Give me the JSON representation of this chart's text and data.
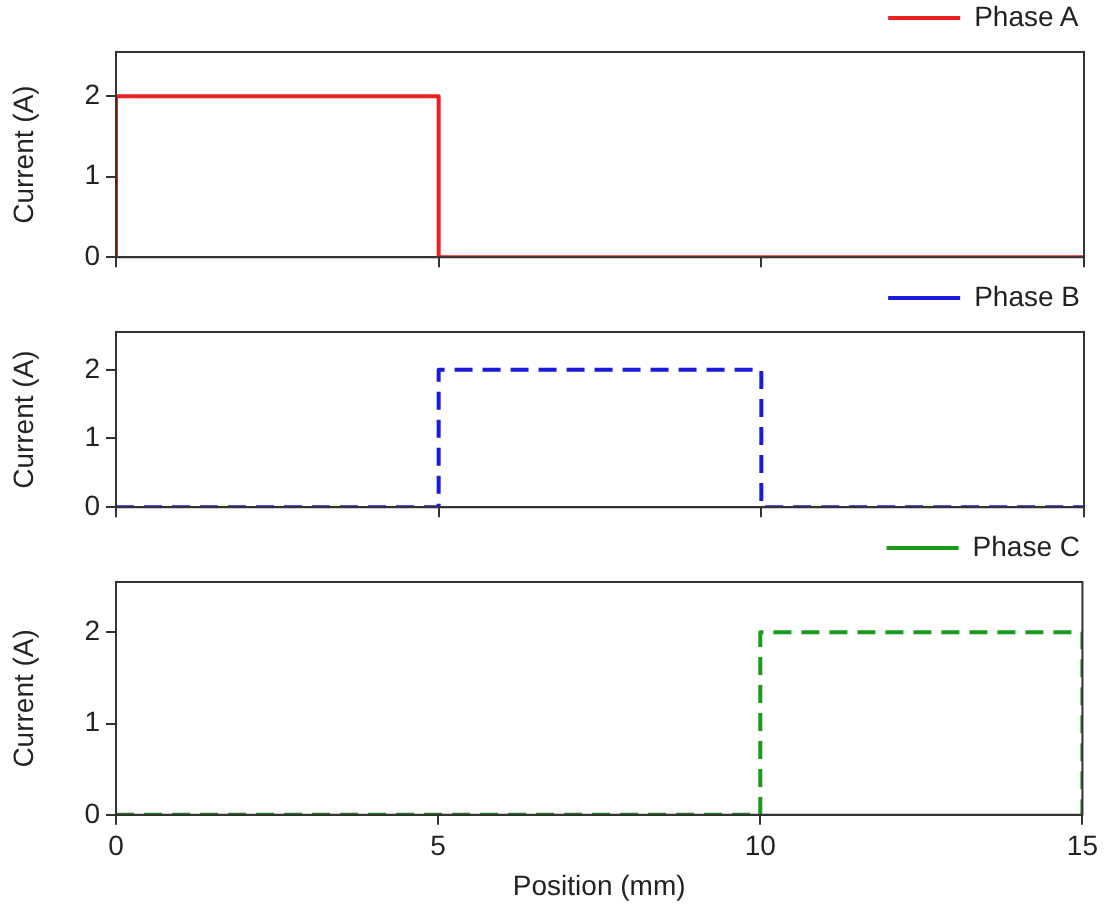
{
  "chart_data": [
    {
      "type": "line",
      "ylabel": "Current (A)",
      "xlim": [
        0,
        15
      ],
      "xticks": [
        0,
        5,
        10,
        15
      ],
      "ylim": [
        0,
        2.55
      ],
      "yticks": [
        0,
        1,
        2
      ],
      "tick_labels": "y",
      "grid": false,
      "legend": "top right",
      "marker": "none",
      "series": [
        {
          "name": "Phase A",
          "color": "#e8201e",
          "line_style": "solid",
          "x": [
            0,
            0,
            5,
            5,
            15
          ],
          "values": [
            0,
            2,
            2,
            0,
            0
          ]
        }
      ]
    },
    {
      "type": "line",
      "ylabel": "Current (A)",
      "xlim": [
        0,
        15
      ],
      "xticks": [
        0,
        5,
        10,
        15
      ],
      "ylim": [
        0,
        2.55
      ],
      "yticks": [
        0,
        1,
        2
      ],
      "tick_labels": "y",
      "grid": false,
      "legend": "top right",
      "marker": "none",
      "series": [
        {
          "name": "Phase B",
          "color": "#1a1adc",
          "line_style": "dashed",
          "x": [
            0,
            5,
            5,
            10,
            10,
            15
          ],
          "values": [
            0,
            0,
            2,
            2,
            0,
            0
          ]
        }
      ]
    },
    {
      "type": "line",
      "xlabel": "Position (mm)",
      "ylabel": "Current (A)",
      "xlim": [
        0,
        15
      ],
      "xticks": [
        0,
        5,
        10,
        15
      ],
      "ylim": [
        0,
        2.55
      ],
      "yticks": [
        0,
        1,
        2
      ],
      "grid": false,
      "legend": "top right",
      "marker": "none",
      "series": [
        {
          "name": "Phase C",
          "color": "#1a9a1a",
          "line_style": "dashed",
          "x": [
            0,
            10,
            10,
            15,
            15
          ],
          "values": [
            0,
            0,
            2,
            2,
            0
          ]
        }
      ]
    }
  ]
}
